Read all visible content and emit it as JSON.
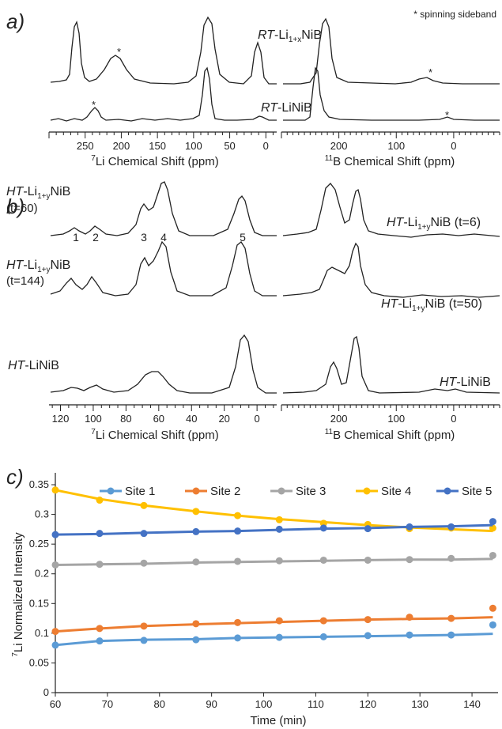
{
  "panels": {
    "a": {
      "label": "a)",
      "note": "* spinning sideband",
      "li_xlabel": "Chemical Shift (ppm)",
      "li_xlabel_sup": "7",
      "li_xlabel_el": "Li",
      "b_xlabel": "Chemical Shift (ppm)",
      "b_xlabel_sup": "11",
      "b_xlabel_el": "B",
      "li_ticks": [
        "250",
        "200",
        "150",
        "100",
        "50",
        "0"
      ],
      "b_ticks": [
        "200",
        "100",
        "0"
      ],
      "traces": [
        {
          "prefix": "RT",
          "name_base": "-Li",
          "sub": "1+x",
          "suffix": "NiB"
        },
        {
          "prefix": "RT",
          "name_base": "-LiNiB",
          "sub": "",
          "suffix": ""
        }
      ],
      "sideband_mark": "*"
    },
    "b": {
      "label": "b)",
      "li_xlabel": "Chemical Shift (ppm)",
      "li_xlabel_sup": "7",
      "li_xlabel_el": "Li",
      "b_xlabel": "Chemical Shift (ppm)",
      "b_xlabel_sup": "11",
      "b_xlabel_el": "B",
      "li_ticks": [
        "120",
        "100",
        "80",
        "60",
        "40",
        "20",
        "0"
      ],
      "b_ticks": [
        "200",
        "100",
        "0"
      ],
      "li_traces": [
        {
          "prefix": "HT",
          "base": "-Li",
          "sub": "1+y",
          "suffix": "NiB",
          "time": "(t=60)"
        },
        {
          "prefix": "HT",
          "base": "-Li",
          "sub": "1+y",
          "suffix": "NiB",
          "time": "(t=144)"
        },
        {
          "prefix": "HT",
          "base": "-LiNiB",
          "sub": "",
          "suffix": "",
          "time": ""
        }
      ],
      "b_traces": [
        {
          "prefix": "HT",
          "base": "-Li",
          "sub": "1+y",
          "suffix": "NiB (t=6)"
        },
        {
          "prefix": "HT",
          "base": "-Li",
          "sub": "1+y",
          "suffix": "NiB (t=50)"
        },
        {
          "prefix": "HT",
          "base": "-LiNiB",
          "sub": "",
          "suffix": ""
        }
      ],
      "site_numbers": [
        "1",
        "2",
        "3",
        "4",
        "5"
      ]
    },
    "c": {
      "label": "c)"
    }
  },
  "chart_data": {
    "type": "line",
    "xlabel": "Time (min)",
    "ylabel_sup": "7",
    "ylabel": "Li Normalized Intensity",
    "xlim": [
      60,
      145
    ],
    "ylim": [
      0,
      0.37
    ],
    "x_ticks": [
      "60",
      "70",
      "80",
      "90",
      "100",
      "110",
      "120",
      "130",
      "140"
    ],
    "y_ticks": [
      "0",
      "0.05",
      "0.1",
      "0.15",
      "0.2",
      "0.25",
      "0.3",
      "0.35"
    ],
    "legend_position": "top",
    "x": [
      60,
      68.5,
      77,
      87,
      95,
      103,
      111.5,
      120,
      128,
      136,
      144
    ],
    "series": [
      {
        "name": "Site 1",
        "color": "#5b9bd5",
        "values": [
          0.08,
          0.087,
          0.088,
          0.089,
          0.092,
          0.093,
          0.094,
          0.096,
          0.097,
          0.097,
          0.114
        ],
        "fit": [
          0.08,
          0.087,
          0.089,
          0.09,
          0.092,
          0.093,
          0.094,
          0.095,
          0.096,
          0.097,
          0.099
        ]
      },
      {
        "name": "Site 2",
        "color": "#ed7d31",
        "values": [
          0.103,
          0.108,
          0.112,
          0.116,
          0.118,
          0.121,
          0.121,
          0.123,
          0.127,
          0.125,
          0.142
        ],
        "fit": [
          0.103,
          0.108,
          0.112,
          0.115,
          0.117,
          0.119,
          0.121,
          0.123,
          0.124,
          0.125,
          0.127
        ]
      },
      {
        "name": "Site 3",
        "color": "#a5a5a5",
        "values": [
          0.215,
          0.216,
          0.218,
          0.22,
          0.221,
          0.222,
          0.223,
          0.223,
          0.224,
          0.226,
          0.231
        ],
        "fit": [
          0.215,
          0.216,
          0.217,
          0.219,
          0.22,
          0.221,
          0.222,
          0.223,
          0.224,
          0.224,
          0.225
        ]
      },
      {
        "name": "Site 4",
        "color": "#ffc000",
        "values": [
          0.341,
          0.324,
          0.315,
          0.305,
          0.298,
          0.291,
          0.285,
          0.283,
          0.276,
          0.277,
          0.277
        ],
        "fit": [
          0.341,
          0.326,
          0.315,
          0.305,
          0.298,
          0.292,
          0.287,
          0.282,
          0.278,
          0.275,
          0.272
        ]
      },
      {
        "name": "Site 5",
        "color": "#4472c4",
        "values": [
          0.266,
          0.268,
          0.268,
          0.271,
          0.272,
          0.275,
          0.277,
          0.276,
          0.279,
          0.279,
          0.288
        ],
        "fit": [
          0.266,
          0.267,
          0.269,
          0.271,
          0.272,
          0.274,
          0.276,
          0.277,
          0.279,
          0.28,
          0.282
        ]
      }
    ]
  }
}
